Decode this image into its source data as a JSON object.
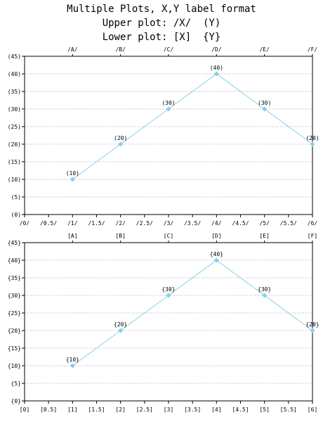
{
  "title": [
    "Multiple Plots, X,Y label format",
    "Upper plot: /X/  (Y)",
    "Lower plot: [X]  {Y}"
  ],
  "chart_data": [
    {
      "type": "line",
      "x": [
        1,
        2,
        3,
        4,
        5,
        6
      ],
      "values": [
        10,
        20,
        30,
        40,
        30,
        20
      ],
      "top_categories": [
        "/A/",
        "/B/",
        "/C/",
        "/D/",
        "/E/",
        "/F/"
      ],
      "x_ticks": [
        "/0/",
        "/0.5/",
        "/1/",
        "/1.5/",
        "/2/",
        "/2.5/",
        "/3/",
        "/3.5/",
        "/4/",
        "/4.5/",
        "/5/",
        "/5.5/",
        "/6/"
      ],
      "y_ticks": [
        "(0)",
        "(5)",
        "(10)",
        "(15)",
        "(20)",
        "(25)",
        "(30)",
        "(35)",
        "(40)",
        "(45)"
      ],
      "data_labels": [
        "(10)",
        "(20)",
        "(30)",
        "(40)",
        "(30)",
        "(20)"
      ],
      "xlim": [
        0,
        6
      ],
      "ylim": [
        0,
        45
      ],
      "grid": true,
      "line_color": "#87ceeb",
      "marker_color": "#87ceeb"
    },
    {
      "type": "line",
      "x": [
        1,
        2,
        3,
        4,
        5,
        6
      ],
      "values": [
        10,
        20,
        30,
        40,
        30,
        20
      ],
      "top_categories": [
        "[A]",
        "[B]",
        "[C]",
        "[D]",
        "[E]",
        "[F]"
      ],
      "x_ticks": [
        "[0]",
        "[0.5]",
        "[1]",
        "[1.5]",
        "[2]",
        "[2.5]",
        "[3]",
        "[3.5]",
        "[4]",
        "[4.5]",
        "[5]",
        "[5.5]",
        "[6]"
      ],
      "y_ticks": [
        "{0}",
        "{5}",
        "{10}",
        "{15}",
        "{20}",
        "{25}",
        "{30}",
        "{35}",
        "{40}",
        "{45}"
      ],
      "data_labels": [
        "{10}",
        "{20}",
        "{30}",
        "{40}",
        "{30}",
        "{20}"
      ],
      "xlim": [
        0,
        6
      ],
      "ylim": [
        0,
        45
      ],
      "grid": true,
      "line_color": "#87ceeb",
      "marker_color": "#87ceeb"
    }
  ]
}
